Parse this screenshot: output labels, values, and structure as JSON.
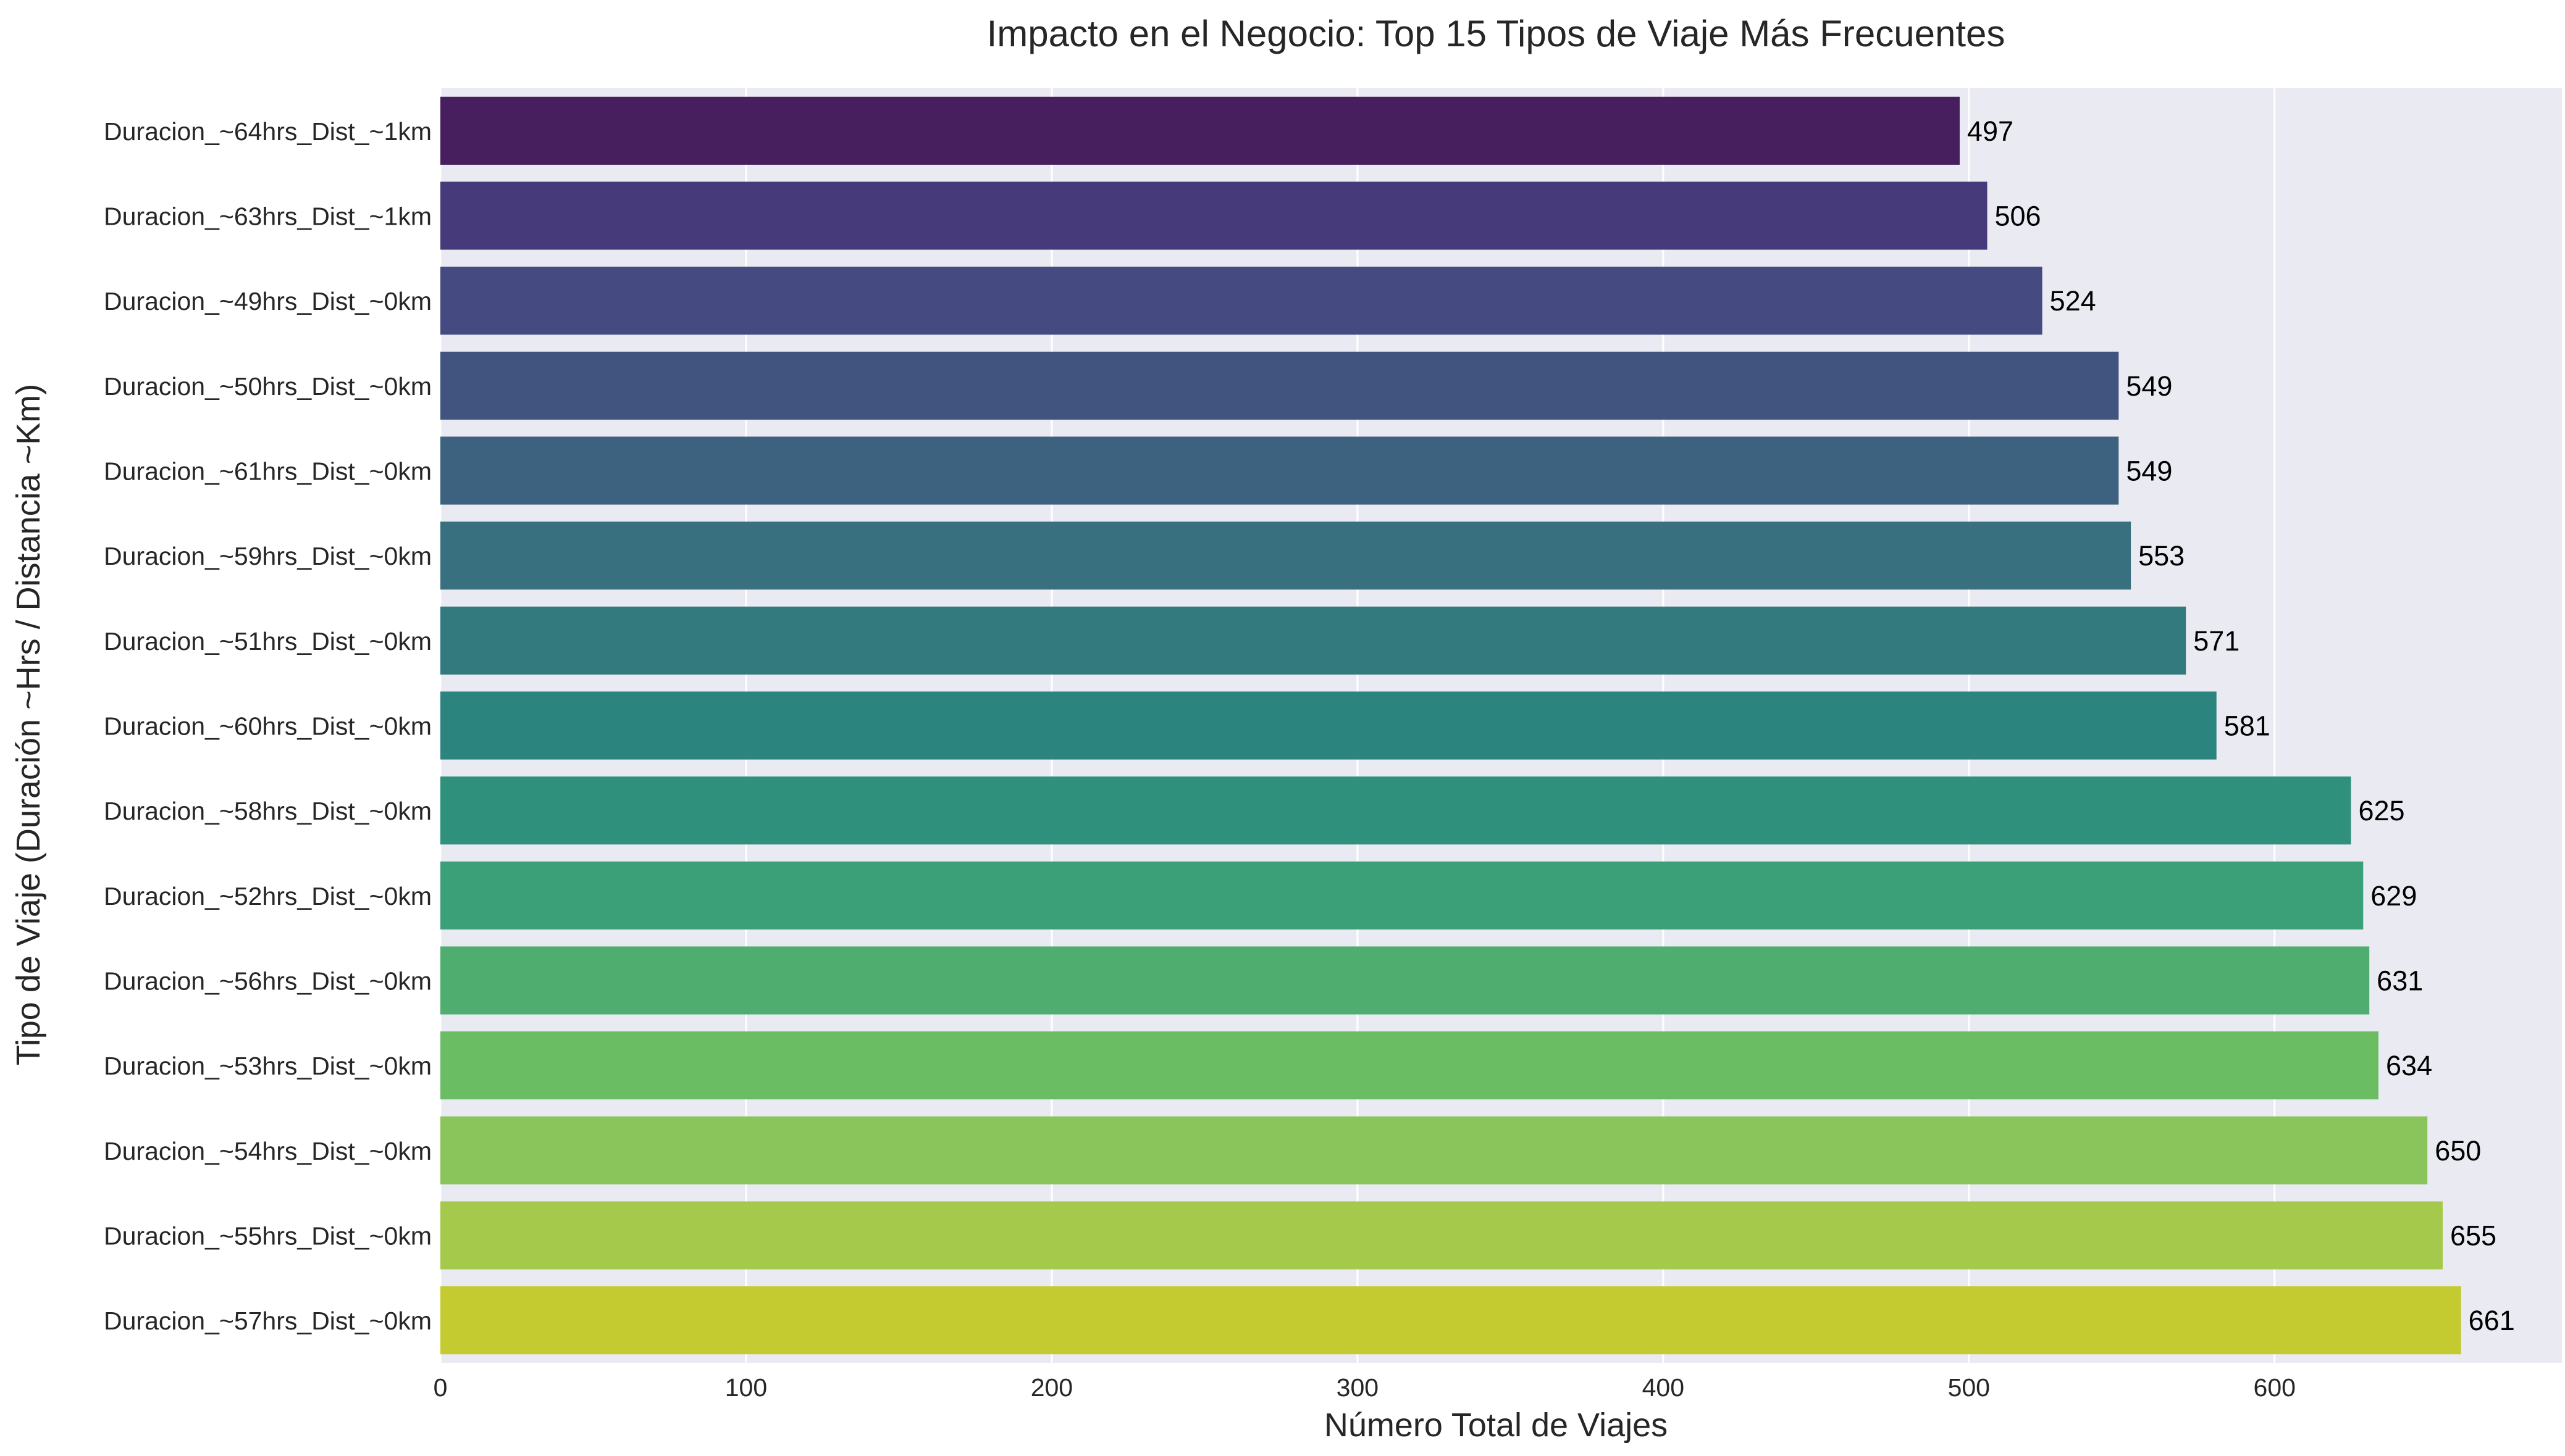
{
  "chart_data": {
    "type": "bar",
    "orientation": "horizontal",
    "title": "Impacto en el Negocio: Top 15 Tipos de Viaje Más Frecuentes",
    "xlabel": "Número Total de Viajes",
    "ylabel": "Tipo de Viaje (Duración ~Hrs / Distancia ~Km)",
    "xlim": [
      0,
      694
    ],
    "xticks": [
      0,
      100,
      200,
      300,
      400,
      500,
      600
    ],
    "grid": true,
    "background": "#eaeaf2",
    "categories": [
      "Duracion_~64hrs_Dist_~1km",
      "Duracion_~63hrs_Dist_~1km",
      "Duracion_~49hrs_Dist_~0km",
      "Duracion_~50hrs_Dist_~0km",
      "Duracion_~61hrs_Dist_~0km",
      "Duracion_~59hrs_Dist_~0km",
      "Duracion_~51hrs_Dist_~0km",
      "Duracion_~60hrs_Dist_~0km",
      "Duracion_~58hrs_Dist_~0km",
      "Duracion_~52hrs_Dist_~0km",
      "Duracion_~56hrs_Dist_~0km",
      "Duracion_~53hrs_Dist_~0km",
      "Duracion_~54hrs_Dist_~0km",
      "Duracion_~55hrs_Dist_~0km",
      "Duracion_~57hrs_Dist_~0km"
    ],
    "values": [
      497,
      506,
      524,
      549,
      549,
      553,
      571,
      581,
      625,
      629,
      631,
      634,
      650,
      655,
      661
    ],
    "data_labels": [
      "497",
      "506",
      "524",
      "549",
      "549",
      "553",
      "571",
      "581",
      "625",
      "629",
      "631",
      "634",
      "650",
      "655",
      "661"
    ],
    "colors": [
      "#471f5f",
      "#463a7a",
      "#454a80",
      "#41547f",
      "#3d627f",
      "#38707f",
      "#327a7e",
      "#2c847e",
      "#2f917c",
      "#3b9f77",
      "#4fad6f",
      "#6bbd64",
      "#89c55a",
      "#a5ca4b",
      "#c3cb31"
    ]
  }
}
